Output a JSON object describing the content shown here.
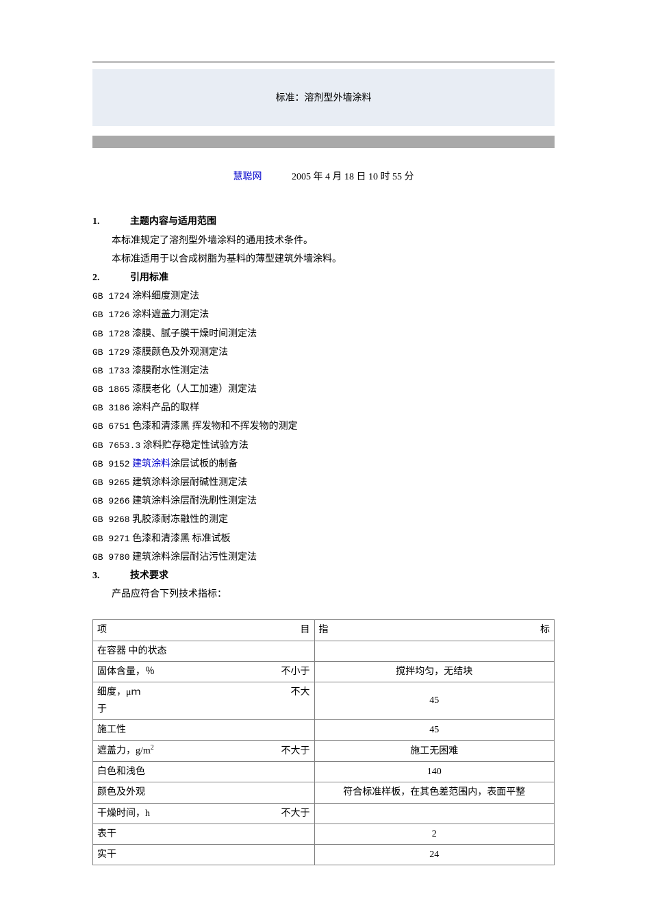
{
  "header": {
    "title": "标准：溶剂型外墙涂料"
  },
  "meta": {
    "source_label": "慧聪网",
    "datetime": "2005 年 4 月 18 日 10 时 55 分"
  },
  "sections": {
    "s1": {
      "num": "1.",
      "title": "主题内容与适用范围"
    },
    "s1_p1": "本标准规定了溶剂型外墙涂料的通用技术条件。",
    "s1_p2": "本标准适用于以合成树脂为基料的薄型建筑外墙涂料。",
    "s2": {
      "num": "2.",
      "title": "引用标准"
    },
    "refs": [
      {
        "code": "GB 1724",
        "text": " 涂料细度测定法"
      },
      {
        "code": "GB 1726",
        "text": " 涂料遮盖力测定法"
      },
      {
        "code": "GB 1728",
        "text": " 漆膜、腻子膜干燥时间测定法"
      },
      {
        "code": "GB 1729",
        "text": " 漆膜颜色及外观测定法"
      },
      {
        "code": "GB 1733",
        "text": " 漆膜耐水性测定法"
      },
      {
        "code": "GB 1865",
        "text": " 漆膜老化（人工加速）测定法"
      },
      {
        "code": "GB 3186",
        "text": " 涂料产品的取样"
      },
      {
        "code": "GB 6751",
        "text": " 色漆和清漆黑 挥发物和不挥发物的测定"
      },
      {
        "code": "GB 7653.3",
        "text": " 涂料贮存稳定性试验方法"
      },
      {
        "code": "GB 9152",
        "link": "建筑涂料",
        "text": "涂层试板的制备"
      },
      {
        "code": "GB 9265",
        "text": " 建筑涂料涂层耐碱性测定法"
      },
      {
        "code": "GB 9266",
        "text": " 建筑涂料涂层耐洗刷性测定法"
      },
      {
        "code": "GB 9268",
        "text": " 乳胶漆耐冻融性的测定"
      },
      {
        "code": "GB 9271",
        "text": " 色漆和清漆黑 标准试板"
      },
      {
        "code": "GB 9780",
        "text": " 建筑涂料涂层耐沾污性测定法"
      }
    ],
    "s3": {
      "num": "3.",
      "title": "技术要求"
    },
    "s3_p1": "产品应符合下列技术指标："
  },
  "table": {
    "head": {
      "col1": "项　　　　　　　　　　目",
      "col2": "指　　　　　　　　　　　　标"
    },
    "rows": [
      {
        "item_left": "在容器 中的状态",
        "item_right": "",
        "spec": ""
      },
      {
        "item_left": "固体含量，％",
        "item_right": "不小于",
        "spec": "搅拌均匀，无结块"
      },
      {
        "item_left": "细度，μｍ",
        "item_right": "不大",
        "spec": "45",
        "wrap_second": "于"
      },
      {
        "item_left": "施工性",
        "item_right": "",
        "spec": "45"
      },
      {
        "item_left": "遮盖力，g/m",
        "sup": "2",
        "item_right": "不大于",
        "spec": "施工无困难"
      },
      {
        "item_left": "白色和浅色",
        "item_right": "",
        "spec": "140"
      },
      {
        "item_left": "颜色及外观",
        "item_right": "",
        "spec": "符合标准样板，在其色差范围内，表面平整"
      },
      {
        "item_left": "干燥时间，h",
        "item_right": "不大于",
        "spec": ""
      },
      {
        "item_left": "表干",
        "item_right": "",
        "spec": "2"
      },
      {
        "item_left": "实干",
        "item_right": "",
        "spec": "24"
      }
    ]
  },
  "colors": {
    "header_bg": "#e8edf4",
    "gray_bar": "#a9a9a9",
    "link": "#0000cc",
    "border": "#808080",
    "text": "#000000",
    "bg": "#ffffff"
  }
}
